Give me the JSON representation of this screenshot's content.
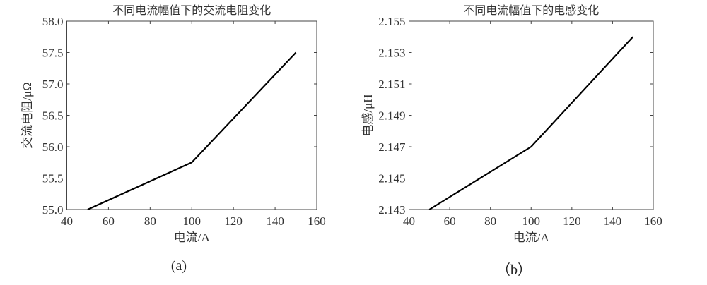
{
  "chart_data": [
    {
      "type": "line",
      "title": "不同电流幅值下的交流电阻变化",
      "xlabel": "电流/A",
      "ylabel": "交流电阻/μΩ",
      "xlim": [
        40,
        160
      ],
      "ylim": [
        55.0,
        58.0
      ],
      "xticks": [
        "40",
        "60",
        "80",
        "100",
        "120",
        "140",
        "160"
      ],
      "yticks": [
        "55.0",
        "55.5",
        "56.0",
        "56.5",
        "57.0",
        "57.5",
        "58.0"
      ],
      "grid": false,
      "x": [
        50,
        100,
        150
      ],
      "y": [
        55.0,
        55.75,
        57.5
      ],
      "line_color": "#000000",
      "caption": "(a)"
    },
    {
      "type": "line",
      "title": "不同电流幅值下的电感变化",
      "xlabel": "电流/A",
      "ylabel": "电感/μH",
      "xlim": [
        40,
        160
      ],
      "ylim": [
        2.143,
        2.155
      ],
      "xticks": [
        "40",
        "60",
        "80",
        "100",
        "120",
        "140",
        "160"
      ],
      "yticks": [
        "2.143",
        "2.145",
        "2.147",
        "2.149",
        "2.151",
        "2.153",
        "2.155"
      ],
      "grid": false,
      "x": [
        50,
        100,
        150
      ],
      "y": [
        2.143,
        2.147,
        2.154
      ],
      "line_color": "#000000",
      "caption": "（b）"
    }
  ]
}
